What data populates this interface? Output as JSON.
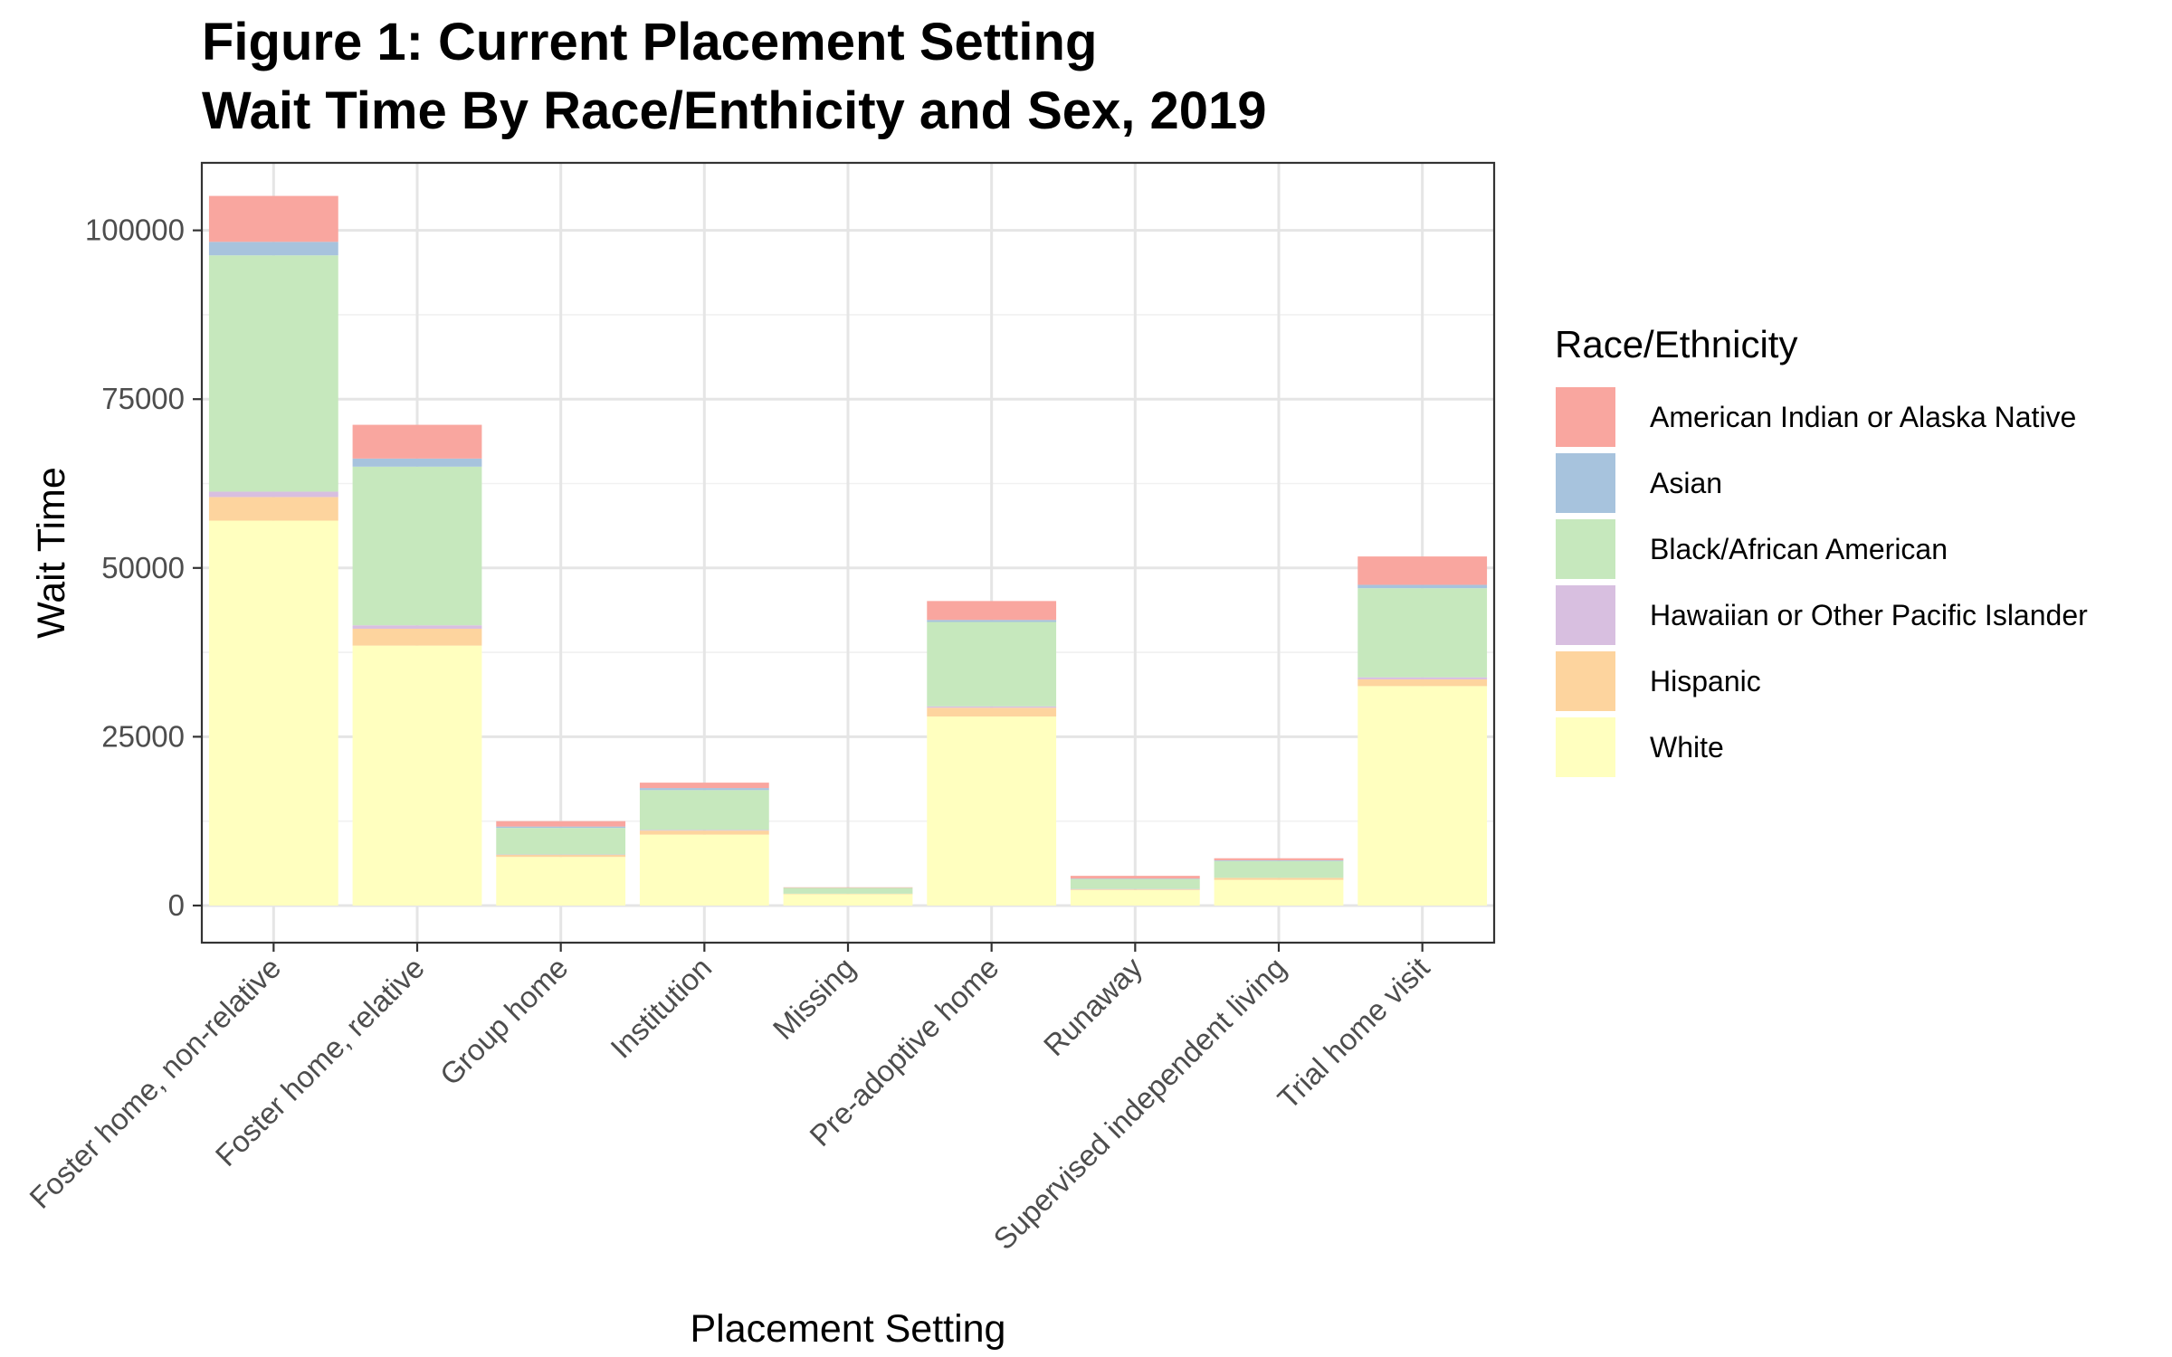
{
  "chart_data": {
    "type": "bar",
    "stacked": true,
    "title": "Figure 1: Current Placement Setting",
    "subtitle": "Wait Time By Race/Enthicity and Sex, 2019",
    "xlabel": "Placement Setting",
    "ylabel": "Wait Time",
    "ylim": [
      -5500,
      110000
    ],
    "yticks": [
      0,
      25000,
      50000,
      75000,
      100000
    ],
    "ytick_labels": [
      "0",
      "25000",
      "50000",
      "75000",
      "100000"
    ],
    "grid": true,
    "legend": {
      "title": "Race/Ethnicity",
      "position": "right"
    },
    "categories": [
      "Foster home, non-relative",
      "Foster home, relative",
      "Group home",
      "Institution",
      "Missing",
      "Pre-adoptive home",
      "Runaway",
      "Supervised independent living",
      "Trial home visit"
    ],
    "series": [
      {
        "name": "White",
        "color": "#ffffbf",
        "values": [
          57000,
          38500,
          7200,
          10500,
          1700,
          28000,
          2300,
          3800,
          32500
        ]
      },
      {
        "name": "Hispanic",
        "color": "#fdd49e",
        "values": [
          3500,
          2500,
          300,
          600,
          50,
          1300,
          100,
          300,
          1000
        ]
      },
      {
        "name": "Hawaiian or Other Pacific Islander",
        "color": "#d8bfe0",
        "values": [
          800,
          500,
          50,
          100,
          0,
          200,
          50,
          0,
          300
        ]
      },
      {
        "name": "Black/African American",
        "color": "#c6e8bd",
        "values": [
          35000,
          23500,
          3950,
          5900,
          900,
          12500,
          1500,
          2500,
          13200
        ]
      },
      {
        "name": "Asian",
        "color": "#a7c3dd",
        "values": [
          2000,
          1200,
          200,
          300,
          0,
          300,
          50,
          100,
          500
        ]
      },
      {
        "name": "American Indian or Alaska Native",
        "color": "#f9a69f",
        "values": [
          6800,
          5000,
          800,
          800,
          50,
          2800,
          400,
          300,
          4200
        ]
      }
    ],
    "legend_order": [
      "American Indian or Alaska Native",
      "Asian",
      "Black/African American",
      "Hawaiian or Other Pacific Islander",
      "Hispanic",
      "White"
    ]
  }
}
